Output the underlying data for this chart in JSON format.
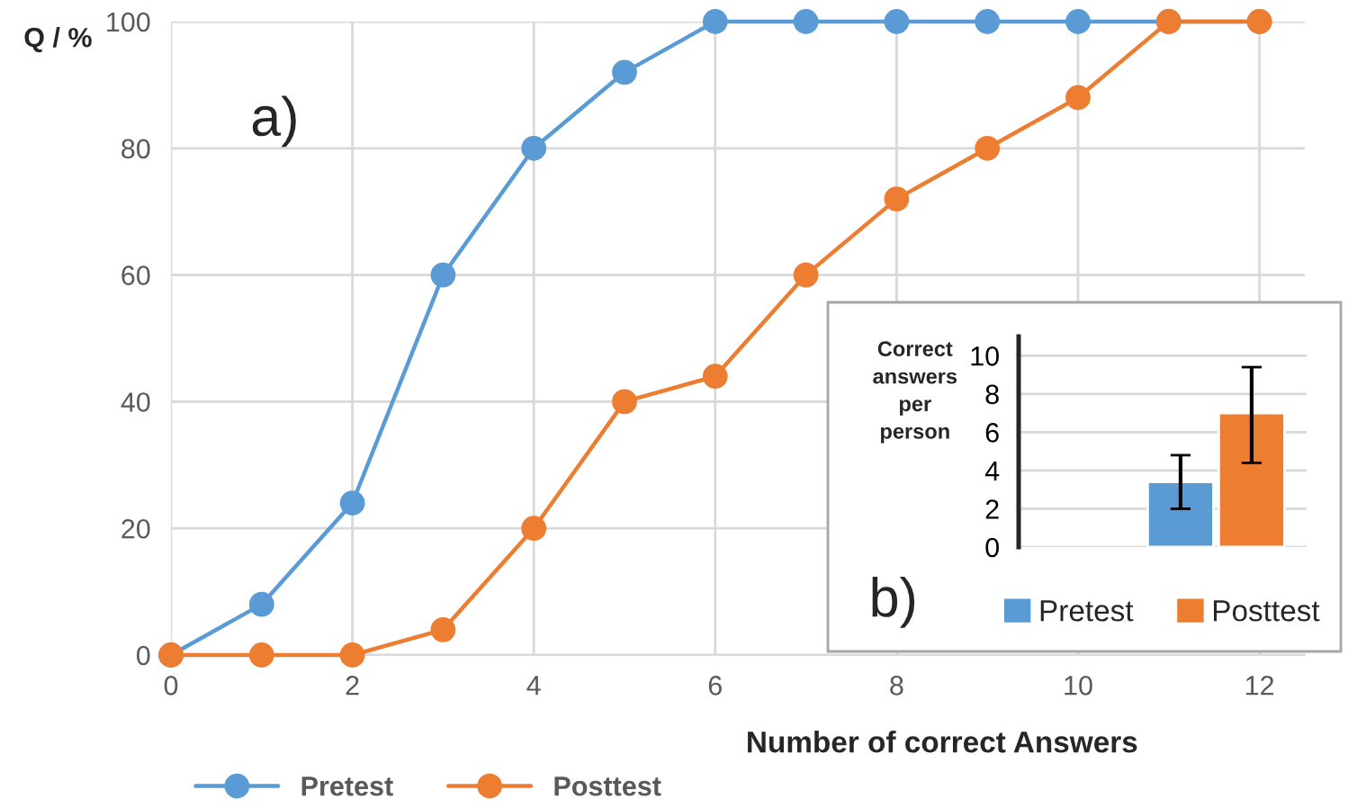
{
  "chart_data": [
    {
      "type": "line",
      "xlabel": "Number of correct Answers",
      "ylabel": "Q / %",
      "x": [
        0,
        1,
        2,
        3,
        4,
        5,
        6,
        7,
        8,
        9,
        10,
        11,
        12
      ],
      "series": [
        {
          "name": "Pretest",
          "color": "#5b9bd5",
          "values": [
            0,
            8,
            24,
            60,
            80,
            92,
            100,
            100,
            100,
            100,
            100,
            100,
            100
          ]
        },
        {
          "name": "Posttest",
          "color": "#ed7d31",
          "values": [
            0,
            0,
            0,
            4,
            20,
            40,
            44,
            60,
            72,
            80,
            88,
            100,
            100
          ]
        }
      ],
      "xlim": [
        0,
        12.5
      ],
      "ylim": [
        0,
        100
      ],
      "xticks": [
        0,
        2,
        4,
        6,
        8,
        10,
        12
      ],
      "yticks": [
        0,
        20,
        40,
        60,
        80,
        100
      ],
      "grid": true,
      "legend": "bottom left",
      "marker": "circle",
      "line_style": "solid",
      "annotations": [
        "a)"
      ]
    },
    {
      "type": "bar",
      "ylabel": "Correct answers per person",
      "categories": [
        null
      ],
      "series": [
        {
          "name": "Pretest",
          "color": "#5b9bd5",
          "values": [
            3.4
          ],
          "errors": [
            [
              2.0,
              4.8
            ]
          ]
        },
        {
          "name": "Posttest",
          "color": "#ed7d31",
          "values": [
            7.0
          ],
          "errors": [
            [
              4.4,
              9.4
            ]
          ]
        }
      ],
      "ylim": [
        0,
        11
      ],
      "yticks": [
        0,
        2,
        4,
        6,
        8,
        10
      ],
      "grid": "y",
      "legend": "bottom",
      "annotations": [
        "b)"
      ]
    }
  ]
}
